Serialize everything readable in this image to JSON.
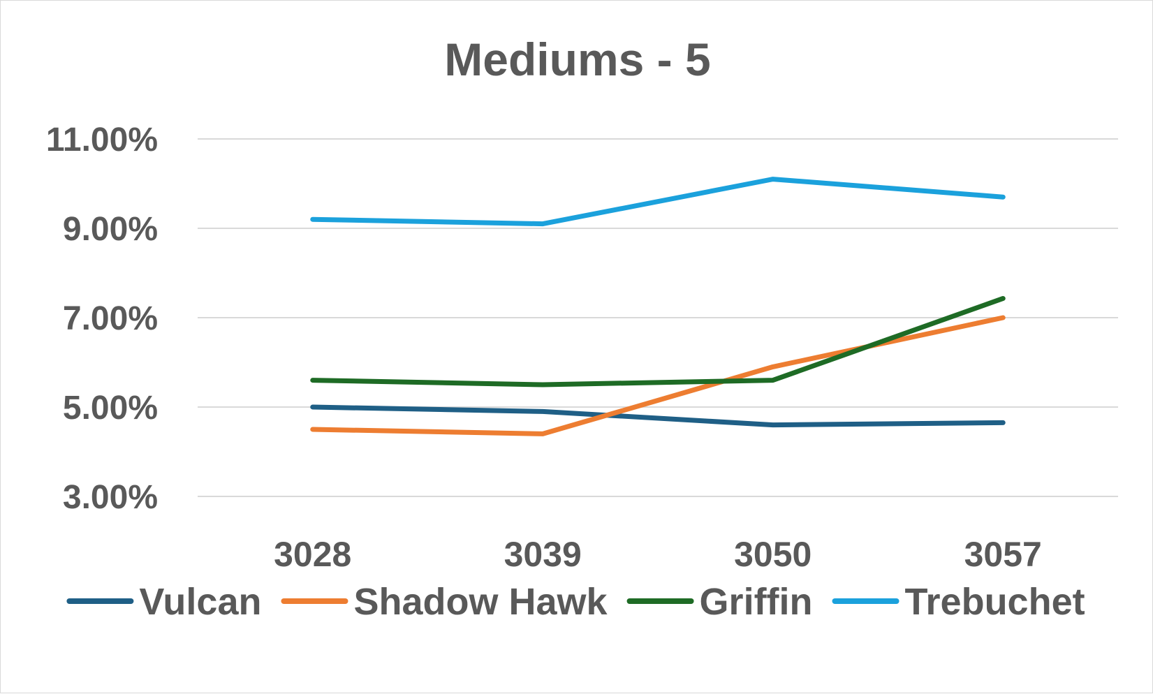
{
  "chart_data": {
    "type": "line",
    "title": "Mediums - 5",
    "xlabel": "",
    "ylabel": "",
    "categories": [
      "3028",
      "3039",
      "3050",
      "3057"
    ],
    "ylim": [
      0.03,
      0.11
    ],
    "yticks": [
      0.03,
      0.05,
      0.07,
      0.09,
      0.11
    ],
    "ytick_labels": [
      "3.00%",
      "5.00%",
      "7.00%",
      "9.00%",
      "11.00%"
    ],
    "grid": true,
    "legend_position": "bottom",
    "series": [
      {
        "name": "Vulcan",
        "color": "#1f5f86",
        "values": [
          0.05,
          0.049,
          0.046,
          0.0465
        ]
      },
      {
        "name": "Shadow Hawk",
        "color": "#ed7d31",
        "values": [
          0.045,
          0.044,
          0.059,
          0.07
        ]
      },
      {
        "name": "Griffin",
        "color": "#1e6b25",
        "values": [
          0.056,
          0.055,
          0.056,
          0.0743
        ]
      },
      {
        "name": "Trebuchet",
        "color": "#1ba1dc",
        "values": [
          0.092,
          0.091,
          0.101,
          0.097
        ]
      }
    ]
  }
}
